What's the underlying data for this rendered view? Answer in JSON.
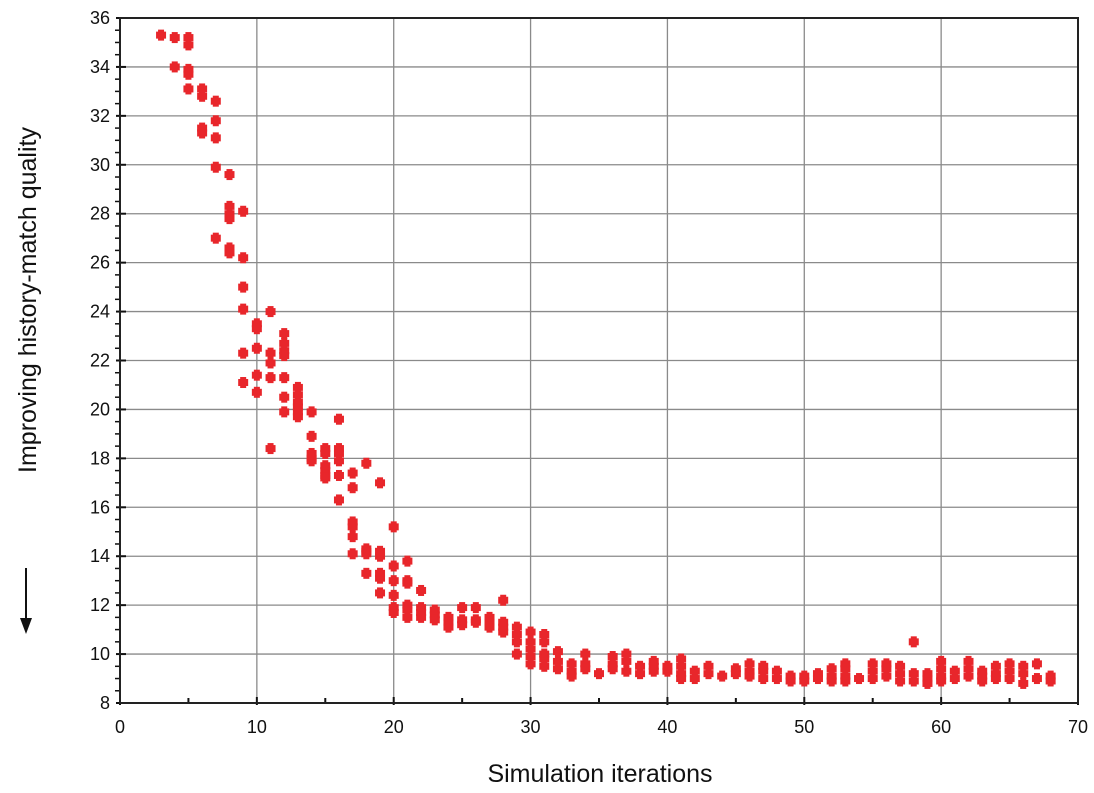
{
  "chart_data": {
    "type": "scatter",
    "xlabel": "Simulation iterations",
    "ylabel": "Improving history-match quality",
    "xlim": [
      0,
      70
    ],
    "ylim": [
      8,
      36
    ],
    "xticks": [
      "0",
      "10",
      "20",
      "30",
      "40",
      "50",
      "60",
      "70"
    ],
    "yticks": [
      "8",
      "10",
      "12",
      "14",
      "16",
      "18",
      "20",
      "22",
      "24",
      "26",
      "28",
      "30",
      "32",
      "34",
      "36"
    ],
    "grid": true,
    "marker_color": "#e8262b",
    "series": [
      {
        "points": [
          [
            3,
            35.3
          ],
          [
            4,
            35.2
          ],
          [
            4,
            34.0
          ],
          [
            5,
            35.2
          ],
          [
            5,
            34.9
          ],
          [
            5,
            33.9
          ],
          [
            5,
            33.7
          ],
          [
            5,
            33.1
          ],
          [
            6,
            33.1
          ],
          [
            6,
            32.8
          ],
          [
            6,
            31.5
          ],
          [
            6,
            31.3
          ],
          [
            7,
            32.6
          ],
          [
            7,
            31.8
          ],
          [
            7,
            31.1
          ],
          [
            7,
            29.9
          ],
          [
            7,
            27.0
          ],
          [
            8,
            29.6
          ],
          [
            8,
            28.3
          ],
          [
            8,
            28.0
          ],
          [
            8,
            27.8
          ],
          [
            8,
            26.6
          ],
          [
            8,
            26.4
          ],
          [
            9,
            28.1
          ],
          [
            9,
            26.2
          ],
          [
            9,
            25.0
          ],
          [
            9,
            24.1
          ],
          [
            9,
            22.3
          ],
          [
            9,
            21.1
          ],
          [
            10,
            23.5
          ],
          [
            10,
            23.3
          ],
          [
            10,
            22.5
          ],
          [
            10,
            21.4
          ],
          [
            10,
            20.7
          ],
          [
            11,
            24.0
          ],
          [
            11,
            22.3
          ],
          [
            11,
            21.9
          ],
          [
            11,
            21.3
          ],
          [
            11,
            18.4
          ],
          [
            12,
            23.1
          ],
          [
            12,
            22.7
          ],
          [
            12,
            22.4
          ],
          [
            12,
            22.2
          ],
          [
            12,
            21.3
          ],
          [
            12,
            20.5
          ],
          [
            12,
            19.9
          ],
          [
            13,
            20.9
          ],
          [
            13,
            20.6
          ],
          [
            13,
            20.3
          ],
          [
            13,
            20.1
          ],
          [
            13,
            19.9
          ],
          [
            13,
            19.7
          ],
          [
            14,
            19.9
          ],
          [
            14,
            18.9
          ],
          [
            14,
            18.2
          ],
          [
            14,
            18.0
          ],
          [
            14,
            17.9
          ],
          [
            15,
            18.4
          ],
          [
            15,
            18.2
          ],
          [
            15,
            17.7
          ],
          [
            15,
            17.5
          ],
          [
            15,
            17.3
          ],
          [
            15,
            17.2
          ],
          [
            16,
            19.6
          ],
          [
            16,
            18.4
          ],
          [
            16,
            18.2
          ],
          [
            16,
            17.9
          ],
          [
            16,
            17.3
          ],
          [
            16,
            16.3
          ],
          [
            17,
            17.4
          ],
          [
            17,
            16.8
          ],
          [
            17,
            15.4
          ],
          [
            17,
            15.2
          ],
          [
            17,
            14.8
          ],
          [
            17,
            14.1
          ],
          [
            18,
            17.8
          ],
          [
            18,
            14.3
          ],
          [
            18,
            14.2
          ],
          [
            18,
            14.1
          ],
          [
            18,
            13.3
          ],
          [
            19,
            17.0
          ],
          [
            19,
            14.2
          ],
          [
            19,
            14.0
          ],
          [
            19,
            13.3
          ],
          [
            19,
            13.1
          ],
          [
            19,
            12.5
          ],
          [
            20,
            15.2
          ],
          [
            20,
            13.6
          ],
          [
            20,
            13.0
          ],
          [
            20,
            12.4
          ],
          [
            20,
            11.9
          ],
          [
            20,
            11.7
          ],
          [
            21,
            13.8
          ],
          [
            21,
            13.0
          ],
          [
            21,
            12.9
          ],
          [
            21,
            12.0
          ],
          [
            21,
            11.8
          ],
          [
            21,
            11.5
          ],
          [
            22,
            12.6
          ],
          [
            22,
            11.9
          ],
          [
            22,
            11.7
          ],
          [
            22,
            11.5
          ],
          [
            23,
            11.8
          ],
          [
            23,
            11.6
          ],
          [
            23,
            11.4
          ],
          [
            24,
            11.5
          ],
          [
            24,
            11.3
          ],
          [
            24,
            11.1
          ],
          [
            25,
            11.9
          ],
          [
            25,
            11.4
          ],
          [
            25,
            11.2
          ],
          [
            26,
            11.9
          ],
          [
            26,
            11.4
          ],
          [
            26,
            11.3
          ],
          [
            27,
            11.5
          ],
          [
            27,
            11.3
          ],
          [
            27,
            11.1
          ],
          [
            28,
            12.2
          ],
          [
            28,
            11.3
          ],
          [
            28,
            11.1
          ],
          [
            28,
            10.9
          ],
          [
            29,
            11.1
          ],
          [
            29,
            10.8
          ],
          [
            29,
            10.5
          ],
          [
            29,
            10.0
          ],
          [
            30,
            10.9
          ],
          [
            30,
            10.5
          ],
          [
            30,
            10.2
          ],
          [
            30,
            9.9
          ],
          [
            30,
            9.6
          ],
          [
            31,
            10.8
          ],
          [
            31,
            10.5
          ],
          [
            31,
            10.0
          ],
          [
            31,
            9.8
          ],
          [
            31,
            9.5
          ],
          [
            32,
            10.1
          ],
          [
            32,
            9.7
          ],
          [
            32,
            9.4
          ],
          [
            33,
            9.6
          ],
          [
            33,
            9.3
          ],
          [
            33,
            9.1
          ],
          [
            34,
            10.0
          ],
          [
            34,
            9.6
          ],
          [
            34,
            9.4
          ],
          [
            35,
            9.2
          ],
          [
            36,
            9.9
          ],
          [
            36,
            9.6
          ],
          [
            36,
            9.4
          ],
          [
            37,
            10.0
          ],
          [
            37,
            9.7
          ],
          [
            37,
            9.3
          ],
          [
            38,
            9.5
          ],
          [
            38,
            9.2
          ],
          [
            39,
            9.7
          ],
          [
            39,
            9.5
          ],
          [
            39,
            9.3
          ],
          [
            40,
            9.5
          ],
          [
            40,
            9.3
          ],
          [
            41,
            9.8
          ],
          [
            41,
            9.5
          ],
          [
            41,
            9.2
          ],
          [
            41,
            9.0
          ],
          [
            42,
            9.3
          ],
          [
            42,
            9.0
          ],
          [
            43,
            9.5
          ],
          [
            43,
            9.2
          ],
          [
            44,
            9.1
          ],
          [
            45,
            9.4
          ],
          [
            45,
            9.2
          ],
          [
            46,
            9.6
          ],
          [
            46,
            9.3
          ],
          [
            46,
            9.1
          ],
          [
            47,
            9.5
          ],
          [
            47,
            9.3
          ],
          [
            47,
            9.0
          ],
          [
            48,
            9.3
          ],
          [
            48,
            9.0
          ],
          [
            49,
            9.1
          ],
          [
            49,
            8.9
          ],
          [
            50,
            9.1
          ],
          [
            50,
            8.9
          ],
          [
            51,
            9.2
          ],
          [
            51,
            9.0
          ],
          [
            52,
            9.4
          ],
          [
            52,
            9.1
          ],
          [
            52,
            8.9
          ],
          [
            53,
            9.6
          ],
          [
            53,
            9.4
          ],
          [
            53,
            9.1
          ],
          [
            53,
            8.9
          ],
          [
            54,
            9.0
          ],
          [
            55,
            9.6
          ],
          [
            55,
            9.3
          ],
          [
            55,
            9.0
          ],
          [
            56,
            9.6
          ],
          [
            56,
            9.4
          ],
          [
            56,
            9.1
          ],
          [
            57,
            9.5
          ],
          [
            57,
            9.2
          ],
          [
            57,
            8.9
          ],
          [
            58,
            10.5
          ],
          [
            58,
            9.2
          ],
          [
            58,
            8.9
          ],
          [
            59,
            9.2
          ],
          [
            59,
            9.0
          ],
          [
            59,
            8.8
          ],
          [
            60,
            9.7
          ],
          [
            60,
            9.4
          ],
          [
            60,
            9.1
          ],
          [
            60,
            8.9
          ],
          [
            61,
            9.3
          ],
          [
            61,
            9.0
          ],
          [
            62,
            9.7
          ],
          [
            62,
            9.4
          ],
          [
            62,
            9.1
          ],
          [
            63,
            9.3
          ],
          [
            63,
            9.1
          ],
          [
            63,
            8.9
          ],
          [
            64,
            9.5
          ],
          [
            64,
            9.2
          ],
          [
            64,
            9.0
          ],
          [
            65,
            9.6
          ],
          [
            65,
            9.3
          ],
          [
            65,
            9.0
          ],
          [
            66,
            9.5
          ],
          [
            66,
            9.2
          ],
          [
            66,
            8.8
          ],
          [
            67,
            9.6
          ],
          [
            67,
            9.0
          ],
          [
            68,
            9.1
          ],
          [
            68,
            8.9
          ]
        ]
      }
    ]
  }
}
